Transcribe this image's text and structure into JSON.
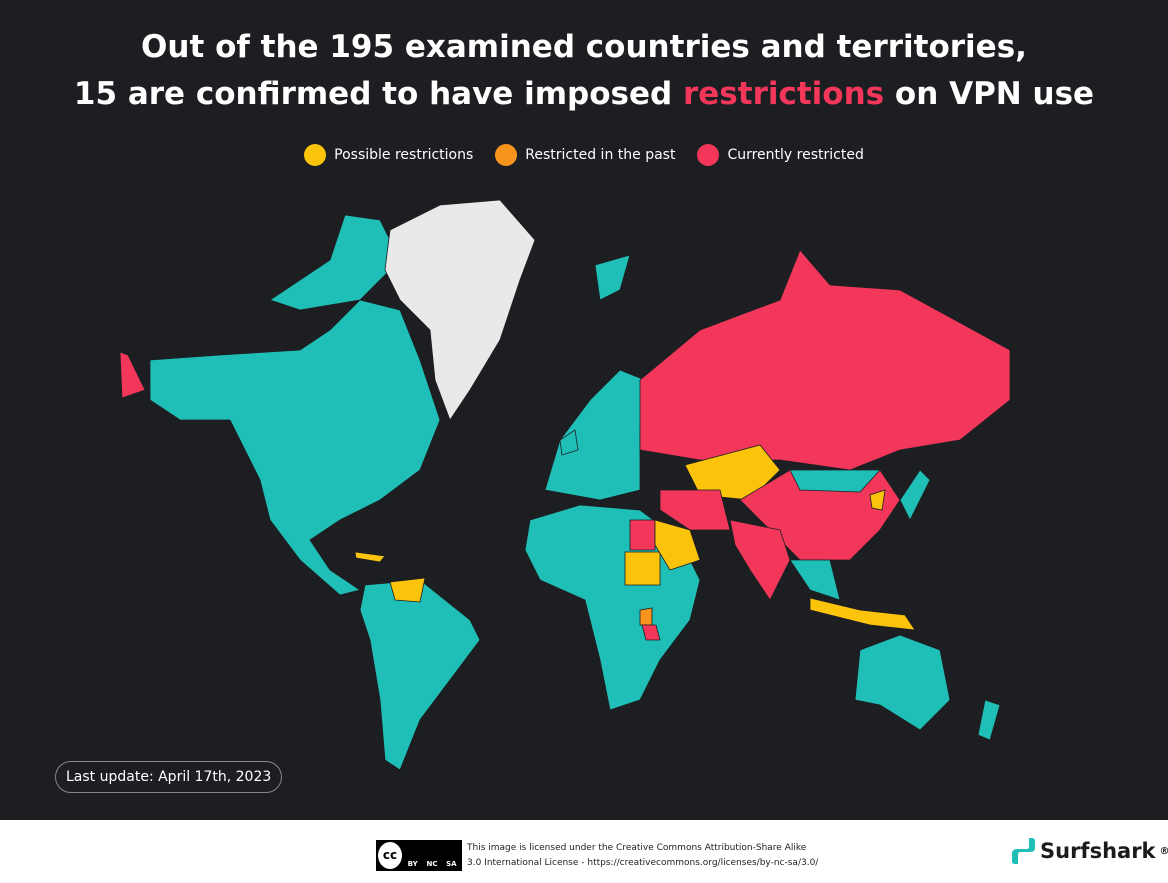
{
  "title": {
    "line1": "Out of the 195 examined countries and territories,",
    "line2_start": "15 are confirmed to have imposed",
    "line2_highlight": "restrictions",
    "line2_end": "on VPN use"
  },
  "legend": [
    {
      "label": "Possible restrictions",
      "color": "#fcc30b"
    },
    {
      "label": "Restricted in the past",
      "color": "#f7941d"
    },
    {
      "label": "Currently restricted",
      "color": "#f2375b"
    }
  ],
  "last_update": "Last update: April 17th, 2023",
  "footer": {
    "license_line1": "This image is licensed under the Creative Commons Attribution-Share Alike",
    "license_line2": "3.0 International License - https://creativecommons.org/licenses/by-nc-sa/3.0/",
    "cc_mark": "cc",
    "cc_badges": [
      "BY",
      "NC",
      "SA"
    ],
    "brand": "Surfshark",
    "brand_mark": "®"
  }
}
